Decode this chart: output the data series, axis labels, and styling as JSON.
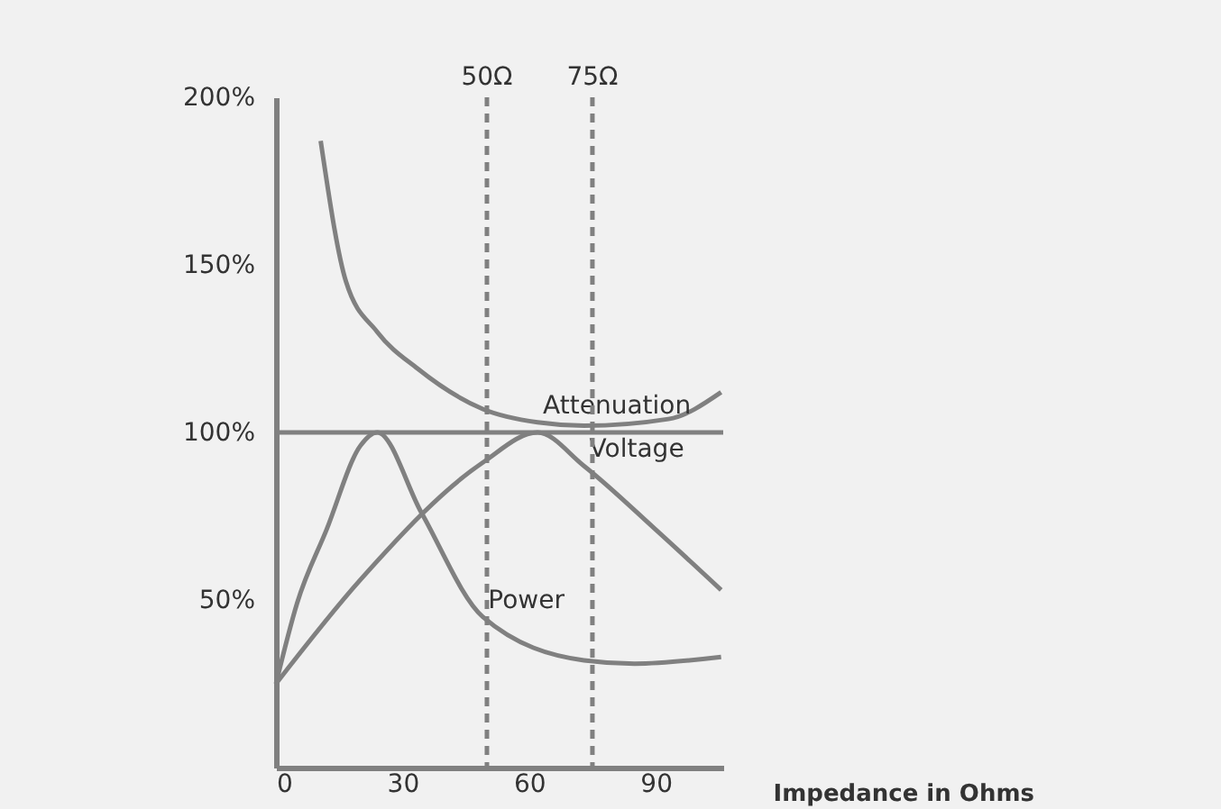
{
  "chart_data": {
    "type": "line",
    "xlabel": "Impedance in Ohms",
    "xlim": [
      0,
      106
    ],
    "xticks": [
      0,
      30,
      60,
      90
    ],
    "ylim": [
      0,
      200
    ],
    "yticks": [
      {
        "value": 50,
        "label": "50%"
      },
      {
        "value": 100,
        "label": "100%"
      },
      {
        "value": 150,
        "label": "150%"
      },
      {
        "value": 200,
        "label": "200%"
      }
    ],
    "grid": false,
    "marker": "none",
    "line_style": "solid",
    "series": [
      {
        "name": "Attenuation",
        "color": "#808080",
        "x": [
          10.6,
          16.6,
          24,
          33.6,
          49,
          62,
          73,
          93,
          105.5
        ],
        "values": [
          187,
          145,
          130,
          119,
          107,
          103,
          102,
          104,
          112
        ]
      },
      {
        "name": "Voltage",
        "color": "#808080",
        "x": [
          0,
          20,
          49,
          62,
          73,
          90,
          105.5
        ],
        "values": [
          25,
          56,
          91,
          100,
          90,
          71,
          53
        ]
      },
      {
        "name": "Power",
        "color": "#808080",
        "x": [
          0,
          5,
          12,
          20,
          24,
          34.5,
          49,
          73,
          85,
          105.5
        ],
        "values": [
          25,
          49,
          71,
          96,
          100,
          76,
          45,
          32,
          31,
          33
        ]
      }
    ],
    "ref_lines": [
      {
        "axis": "y",
        "value": 100,
        "label": null,
        "color": "#808080",
        "line_style": "solid"
      },
      {
        "axis": "x",
        "value": 50,
        "label": "50Ω",
        "color": "#808080",
        "line_style": "dashed"
      },
      {
        "axis": "x",
        "value": 75,
        "label": "75Ω",
        "color": "#808080",
        "line_style": "dashed"
      }
    ]
  }
}
